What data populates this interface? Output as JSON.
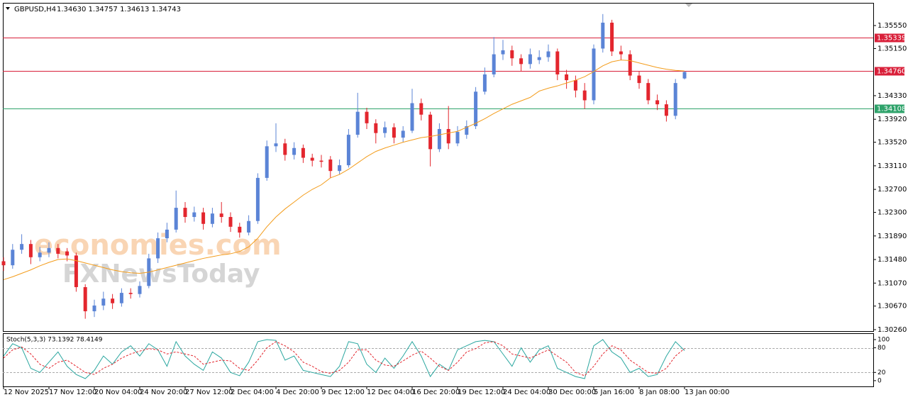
{
  "watermark": {
    "brand": "economies.com",
    "sub": "FXNewsToday"
  },
  "chart_data": [
    {
      "type": "candlestick",
      "title": "GBPUSD,H4",
      "subtitle": "1.34630 1.34757 1.34613 1.34743",
      "categories": [
        "12 Nov 2025",
        null,
        null,
        null,
        null,
        "17 Nov 12:00",
        null,
        null,
        null,
        null,
        "20 Nov 04:00",
        null,
        null,
        null,
        null,
        "24 Nov 20:00",
        null,
        null,
        null,
        null,
        "27 Nov 12:00",
        null,
        null,
        null,
        null,
        "2 Dec 04:00",
        null,
        null,
        null,
        null,
        "4 Dec 20:00",
        null,
        null,
        null,
        null,
        "9 Dec 12:00",
        null,
        null,
        null,
        null,
        "12 Dec 04:00",
        null,
        null,
        null,
        null,
        "16 Dec 20:00",
        null,
        null,
        null,
        null,
        "19 Dec 12:00",
        null,
        null,
        null,
        null,
        "24 Dec 04:00",
        null,
        null,
        null,
        null,
        "30 Dec 00:00",
        null,
        null,
        null,
        null,
        "5 Jan 16:00",
        null,
        null,
        null,
        null,
        "8 Jan 08:00",
        null,
        null,
        null,
        null,
        "13 Jan 00:00"
      ],
      "open": [
        1.3145,
        1.3138,
        1.3165,
        1.3175,
        1.3152,
        1.316,
        1.3168,
        1.3162,
        1.3155,
        1.31,
        1.3058,
        1.3068,
        1.308,
        1.3072,
        1.309,
        1.3088,
        1.3102,
        1.315,
        1.3185,
        1.32,
        1.3238,
        1.3222,
        1.323,
        1.321,
        1.3228,
        1.3222,
        1.3205,
        1.3195,
        1.3215,
        1.329,
        1.3345,
        1.335,
        1.333,
        1.3342,
        1.3325,
        1.332,
        1.3322,
        1.3302,
        1.3312,
        1.3365,
        1.3405,
        1.3385,
        1.3368,
        1.3378,
        1.336,
        1.3372,
        1.342,
        1.34,
        1.334,
        1.3375,
        1.335,
        1.3365,
        1.338,
        1.344,
        1.347,
        1.3505,
        1.3512,
        1.3498,
        1.3488,
        1.3495,
        1.35,
        1.351,
        1.347,
        1.346,
        1.3442,
        1.3425,
        1.3515,
        1.356,
        1.351,
        1.3505,
        1.3468,
        1.3455,
        1.3425,
        1.3418,
        1.3398,
        1.3463
      ],
      "high": [
        1.3152,
        1.3175,
        1.3192,
        1.3182,
        1.317,
        1.3178,
        1.3175,
        1.3168,
        1.316,
        1.3105,
        1.3078,
        1.3092,
        1.3088,
        1.3098,
        1.3098,
        1.311,
        1.3158,
        1.3195,
        1.3212,
        1.3268,
        1.3248,
        1.324,
        1.3238,
        1.3238,
        1.3248,
        1.323,
        1.3212,
        1.3225,
        1.3298,
        1.3355,
        1.3385,
        1.3358,
        1.3352,
        1.3348,
        1.3332,
        1.333,
        1.3328,
        1.3322,
        1.3375,
        1.3438,
        1.3412,
        1.3392,
        1.3388,
        1.3385,
        1.338,
        1.3445,
        1.3428,
        1.3405,
        1.3385,
        1.3415,
        1.338,
        1.339,
        1.3448,
        1.3482,
        1.3535,
        1.353,
        1.352,
        1.3505,
        1.3515,
        1.3512,
        1.3522,
        1.3515,
        1.3478,
        1.3468,
        1.3455,
        1.3522,
        1.3575,
        1.3565,
        1.352,
        1.3512,
        1.3475,
        1.3462,
        1.3435,
        1.3425,
        1.3462,
        1.34757
      ],
      "low": [
        1.3128,
        1.3132,
        1.3158,
        1.314,
        1.3145,
        1.3152,
        1.315,
        1.3145,
        1.3092,
        1.3045,
        1.3048,
        1.306,
        1.3062,
        1.3066,
        1.308,
        1.3082,
        1.3098,
        1.3142,
        1.3178,
        1.3195,
        1.3212,
        1.3214,
        1.32,
        1.3204,
        1.3212,
        1.3196,
        1.3186,
        1.319,
        1.321,
        1.3285,
        1.3335,
        1.332,
        1.3322,
        1.3316,
        1.331,
        1.3308,
        1.329,
        1.3296,
        1.3308,
        1.336,
        1.3375,
        1.335,
        1.336,
        1.335,
        1.3352,
        1.3368,
        1.339,
        1.331,
        1.3335,
        1.334,
        1.3345,
        1.3358,
        1.3375,
        1.3435,
        1.3465,
        1.3495,
        1.3485,
        1.3475,
        1.348,
        1.3488,
        1.3492,
        1.346,
        1.3445,
        1.343,
        1.341,
        1.3418,
        1.3508,
        1.3502,
        1.3495,
        1.346,
        1.3445,
        1.3418,
        1.3408,
        1.3388,
        1.3392,
        1.34613
      ],
      "close": [
        1.3138,
        1.3165,
        1.3175,
        1.3152,
        1.316,
        1.3168,
        1.3158,
        1.3155,
        1.31,
        1.3058,
        1.3068,
        1.308,
        1.3072,
        1.309,
        1.3088,
        1.3102,
        1.315,
        1.3185,
        1.32,
        1.3238,
        1.3222,
        1.323,
        1.321,
        1.3228,
        1.3222,
        1.3205,
        1.3195,
        1.3215,
        1.329,
        1.3345,
        1.335,
        1.333,
        1.3342,
        1.3325,
        1.332,
        1.3318,
        1.3302,
        1.3312,
        1.3365,
        1.3405,
        1.3385,
        1.3368,
        1.3378,
        1.336,
        1.3372,
        1.342,
        1.34,
        1.334,
        1.3375,
        1.335,
        1.337,
        1.338,
        1.344,
        1.347,
        1.3505,
        1.3512,
        1.3498,
        1.3488,
        1.3505,
        1.35,
        1.351,
        1.347,
        1.346,
        1.3442,
        1.3425,
        1.3515,
        1.356,
        1.351,
        1.3505,
        1.3468,
        1.3455,
        1.3425,
        1.3418,
        1.3398,
        1.3455,
        1.34743
      ],
      "up_color": "#5b84d6",
      "down_color": "#e3262e",
      "ma": {
        "color": "#f39c1b",
        "values": [
          1.3113,
          1.3118,
          1.3124,
          1.313,
          1.3137,
          1.3143,
          1.3148,
          1.3149,
          1.3146,
          1.3142,
          1.3138,
          1.3134,
          1.313,
          1.3127,
          1.3125,
          1.3124,
          1.3126,
          1.313,
          1.3134,
          1.3138,
          1.3142,
          1.3146,
          1.315,
          1.3153,
          1.3156,
          1.3158,
          1.3162,
          1.317,
          1.3185,
          1.3205,
          1.3222,
          1.3236,
          1.3248,
          1.326,
          1.327,
          1.3278,
          1.329,
          1.3296,
          1.3305,
          1.3316,
          1.3327,
          1.3336,
          1.3342,
          1.3347,
          1.3352,
          1.3356,
          1.336,
          1.3362,
          1.3365,
          1.3368,
          1.3371,
          1.3378,
          1.3385,
          1.3393,
          1.3402,
          1.341,
          1.3418,
          1.3424,
          1.343,
          1.3441,
          1.3446,
          1.345,
          1.3455,
          1.346,
          1.3466,
          1.3475,
          1.3485,
          1.3492,
          1.3495,
          1.3494,
          1.349,
          1.3486,
          1.3482,
          1.3479,
          1.3477,
          1.3476
        ]
      },
      "levels": [
        {
          "value": 1.35339,
          "label": "1.35339",
          "color": "#d9203a"
        },
        {
          "value": 1.3476,
          "label": "1.34760",
          "color": "#d9203a"
        },
        {
          "value": 1.34108,
          "label": "1.34108",
          "color": "#2fa36b"
        }
      ],
      "ylim": [
        1.30235,
        1.35945
      ],
      "yticks": [
        {
          "value": 1.3555,
          "label": "1.35550"
        },
        {
          "value": 1.3515,
          "label": "1.35150"
        },
        {
          "value": 1.3433,
          "label": "1.34330"
        },
        {
          "value": 1.3392,
          "label": "1.33920"
        },
        {
          "value": 1.3352,
          "label": "1.33520"
        },
        {
          "value": 1.3311,
          "label": "1.33110"
        },
        {
          "value": 1.327,
          "label": "1.32700"
        },
        {
          "value": 1.323,
          "label": "1.32300"
        },
        {
          "value": 1.3189,
          "label": "1.31890"
        },
        {
          "value": 1.3148,
          "label": "1.31480"
        },
        {
          "value": 1.3107,
          "label": "1.31070"
        },
        {
          "value": 1.3067,
          "label": "1.30670"
        },
        {
          "value": 1.3026,
          "label": "1.30260"
        }
      ],
      "grid": false
    },
    {
      "type": "line",
      "title": "Stoch(5,3,3) 73.1392 78.4149",
      "series": [
        {
          "color": "#2ba7a0",
          "dashed": false,
          "values": [
            60,
            90,
            80,
            30,
            20,
            45,
            70,
            35,
            15,
            5,
            25,
            60,
            40,
            70,
            85,
            60,
            90,
            75,
            35,
            95,
            60,
            40,
            25,
            70,
            55,
            20,
            12,
            45,
            95,
            100,
            98,
            50,
            60,
            25,
            20,
            15,
            10,
            35,
            95,
            90,
            40,
            20,
            55,
            30,
            60,
            95,
            60,
            10,
            40,
            25,
            75,
            85,
            95,
            98,
            95,
            65,
            35,
            80,
            45,
            75,
            85,
            30,
            20,
            10,
            5,
            85,
            100,
            70,
            55,
            20,
            30,
            10,
            15,
            60,
            95,
            73.1392
          ]
        },
        {
          "color": "#e3262e",
          "dashed": true,
          "values": [
            55,
            75,
            82,
            65,
            40,
            30,
            45,
            50,
            35,
            20,
            15,
            30,
            40,
            55,
            65,
            72,
            78,
            75,
            65,
            70,
            65,
            60,
            40,
            45,
            50,
            48,
            30,
            25,
            50,
            80,
            95,
            85,
            70,
            45,
            35,
            22,
            18,
            25,
            45,
            75,
            75,
            50,
            38,
            35,
            48,
            62,
            72,
            55,
            35,
            25,
            45,
            70,
            78,
            92,
            95,
            85,
            65,
            60,
            55,
            65,
            75,
            60,
            45,
            20,
            12,
            35,
            65,
            85,
            75,
            50,
            35,
            20,
            18,
            30,
            60,
            78.4149
          ]
        }
      ],
      "levels": [
        20,
        80
      ],
      "ylim": [
        -14,
        115.5
      ],
      "yticks": [
        0,
        20,
        80,
        100
      ]
    }
  ]
}
